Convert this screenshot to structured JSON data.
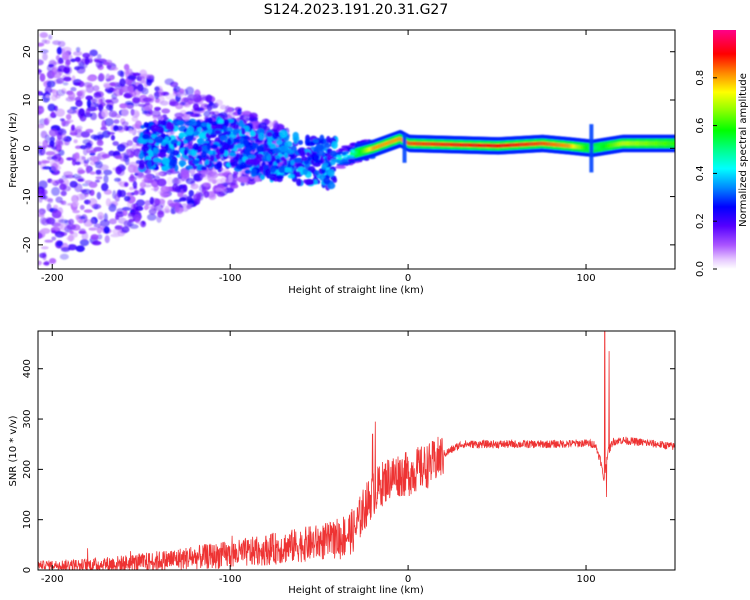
{
  "title": "S124.2023.191.20.31.G27",
  "chart_data": [
    {
      "type": "heatmap",
      "title": "S124.2023.191.20.31.G27",
      "xlabel": "Height of straight line (km)",
      "ylabel": "Frequency (Hz)",
      "xlim": [
        -208,
        150
      ],
      "ylim": [
        -25,
        24.5
      ],
      "xticks": [
        -200,
        -100,
        0,
        100
      ],
      "yticks": [
        -20,
        -10,
        0,
        10,
        20
      ],
      "ridge": {
        "description_points": [
          {
            "x": -140,
            "f": 0.5,
            "amp": 0.3
          },
          {
            "x": -100,
            "f": 1.0,
            "amp": 0.3
          },
          {
            "x": -80,
            "f": -1.5,
            "amp": 0.3
          },
          {
            "x": -55,
            "f": -2.5,
            "amp": 0.3
          },
          {
            "x": -45,
            "f": -3.0,
            "amp": 0.35
          },
          {
            "x": -30,
            "f": -1.0,
            "amp": 0.5
          },
          {
            "x": -20,
            "f": 0.0,
            "amp": 0.8
          },
          {
            "x": -5,
            "f": 2.0,
            "amp": 0.8
          },
          {
            "x": 0,
            "f": 1.0,
            "amp": 0.85
          },
          {
            "x": 50,
            "f": 0.5,
            "amp": 0.9
          },
          {
            "x": 75,
            "f": 1.0,
            "amp": 0.85
          },
          {
            "x": 90,
            "f": 0.5,
            "amp": 0.8
          },
          {
            "x": 103,
            "f": 0.0,
            "amp": 0.5
          },
          {
            "x": 120,
            "f": 1.0,
            "amp": 0.7
          },
          {
            "x": 150,
            "f": 1.0,
            "amp": 0.6
          }
        ]
      },
      "colorbar": {
        "label": "Normalized spectral amplitude",
        "range": [
          0.0,
          1.0
        ],
        "ticks": [
          0.0,
          0.2,
          0.4,
          0.6,
          0.8
        ],
        "tick_labels": [
          "0.0",
          "0.2",
          "0.4",
          "0.6",
          "0.8"
        ],
        "colormap": "rainbow (purple-blue-cyan-green-yellow-red-pink)"
      }
    },
    {
      "type": "line",
      "xlabel": "Height of straight line (km)",
      "ylabel": "SNR (10 * v/v)",
      "xlim": [
        -208,
        150
      ],
      "ylim": [
        0,
        475
      ],
      "xticks": [
        -200,
        -100,
        0,
        100
      ],
      "yticks": [
        0,
        100,
        200,
        300,
        400
      ],
      "color": "#ee3333",
      "series": [
        {
          "x": [
            -208,
            -180,
            -150,
            -120,
            -100,
            -80,
            -60,
            -40,
            -30,
            -25,
            -20,
            -15,
            -10,
            -5,
            0,
            5,
            10,
            15,
            20,
            30,
            40,
            60,
            80,
            100,
            105,
            108,
            110,
            112,
            115,
            120,
            140,
            150
          ],
          "values": [
            10,
            10,
            15,
            25,
            30,
            40,
            50,
            60,
            80,
            120,
            150,
            170,
            185,
            190,
            190,
            200,
            205,
            215,
            230,
            250,
            250,
            250,
            250,
            252,
            250,
            220,
            180,
            230,
            255,
            258,
            250,
            245
          ],
          "spikes": [
            {
              "x": -18.5,
              "value": 295
            },
            {
              "x": -20,
              "value": 270
            },
            {
              "x": 110.5,
              "value": 475
            },
            {
              "x": 111.5,
              "value": 145
            },
            {
              "x": 113,
              "value": 435
            }
          ]
        }
      ]
    }
  ]
}
